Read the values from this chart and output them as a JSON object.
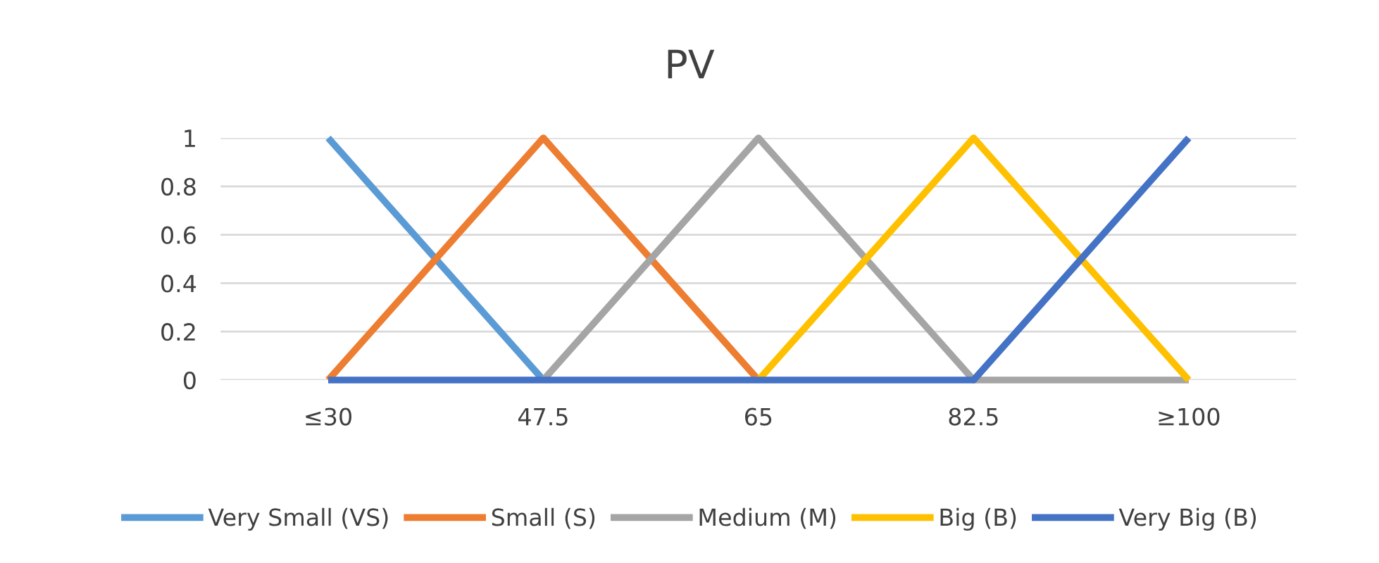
{
  "chart_data": {
    "type": "line",
    "title": "PV",
    "categories": [
      "≤30",
      "47.5",
      "65",
      "82.5",
      "≥100"
    ],
    "series": [
      {
        "name": "Very Small (VS)",
        "color": "#5b9bd5",
        "values": [
          1,
          0,
          null,
          null,
          null
        ]
      },
      {
        "name": "Small (S)",
        "color": "#ed7d31",
        "values": [
          0,
          1,
          0,
          null,
          null
        ]
      },
      {
        "name": "Medium (M)",
        "color": "#a5a5a5",
        "values": [
          null,
          0,
          1,
          0,
          0
        ]
      },
      {
        "name": "Big (B)",
        "color": "#ffc000",
        "values": [
          null,
          null,
          0,
          1,
          0
        ]
      },
      {
        "name": "Very Big (B)",
        "color": "#4472c4",
        "values": [
          0,
          0,
          0,
          0,
          1
        ]
      }
    ],
    "ylim": [
      0,
      1
    ],
    "yticks": [
      0,
      0.2,
      0.4,
      0.6,
      0.8,
      1
    ],
    "grid": "y",
    "legend": "bottom",
    "marker": "none",
    "line_style": "solid"
  }
}
